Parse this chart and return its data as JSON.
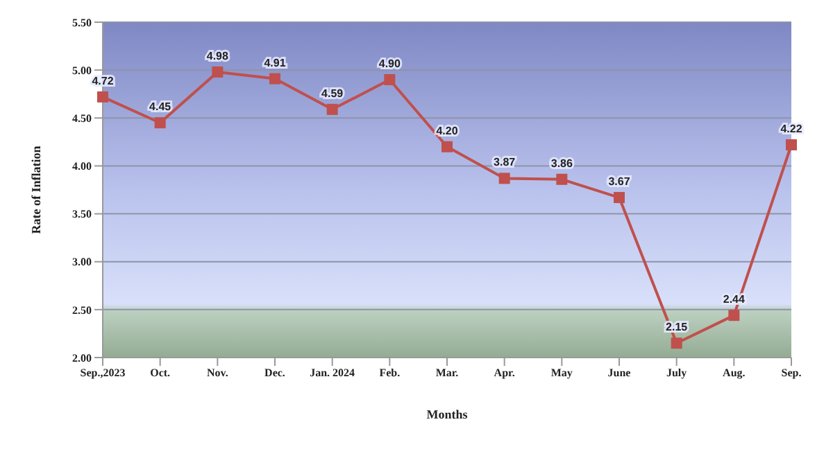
{
  "chart_data": {
    "type": "line",
    "xlabel": "Months",
    "ylabel": "Rate of Inflation",
    "categories": [
      "Sep.,2023",
      "Oct.",
      "Nov.",
      "Dec.",
      "Jan. 2024",
      "Feb.",
      "Mar.",
      "Apr.",
      "May",
      "June",
      "July",
      "Aug.",
      "Sep."
    ],
    "series": [
      {
        "color": "#c0504d",
        "values": [
          4.72,
          4.45,
          4.98,
          4.91,
          4.59,
          4.9,
          4.2,
          3.87,
          3.86,
          3.67,
          2.15,
          2.44,
          4.22
        ],
        "value_labels": [
          "4.72",
          "4.45",
          "4.98",
          "4.91",
          "4.59",
          "4.90",
          "4.20",
          "3.87",
          "3.86",
          "3.67",
          "2.15",
          "2.44",
          "4.22"
        ]
      }
    ],
    "ylim": [
      2,
      5.5
    ],
    "yticks": [
      {
        "value": 2,
        "label": "2.00"
      },
      {
        "value": 2.5,
        "label": "2.50"
      },
      {
        "value": 3,
        "label": "3.00"
      },
      {
        "value": 3.5,
        "label": "3.50"
      },
      {
        "value": 4,
        "label": "4.00"
      },
      {
        "value": 4.5,
        "label": "4.50"
      },
      {
        "value": 5,
        "label": "5.00"
      },
      {
        "value": 5.5,
        "label": "5.50"
      }
    ],
    "grid": "y",
    "marker": "square",
    "line_style": "solid"
  }
}
